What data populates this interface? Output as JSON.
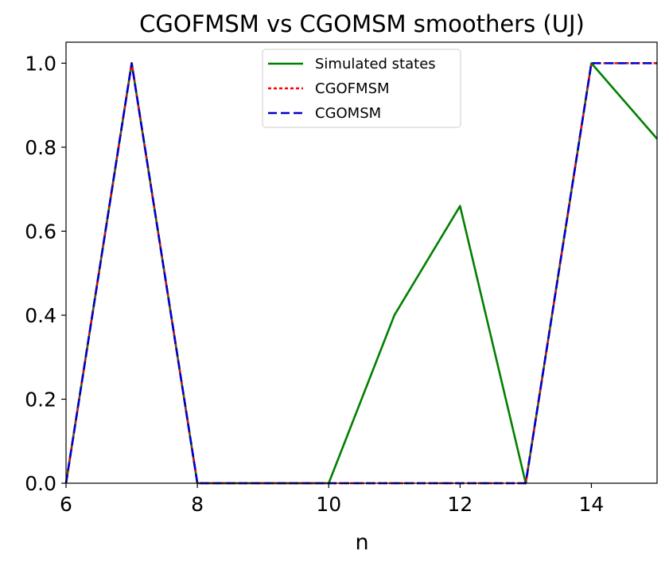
{
  "chart_data": {
    "type": "line",
    "title": "CGOFMSM vs CGOMSM smoothers (UJ)",
    "xlabel": "n",
    "ylabel": "",
    "xlim": [
      6,
      15
    ],
    "ylim": [
      0,
      1.05
    ],
    "xticks": [
      "6",
      "8",
      "10",
      "12",
      "14"
    ],
    "xtick_values": [
      6,
      8,
      10,
      12,
      14
    ],
    "yticks": [
      "0.0",
      "0.2",
      "0.4",
      "0.6",
      "0.8",
      "1.0"
    ],
    "ytick_values": [
      0,
      0.2,
      0.4,
      0.6,
      0.8,
      1.0
    ],
    "grid": false,
    "legend_position": "top-center",
    "x": [
      6,
      7,
      8,
      9,
      10,
      11,
      12,
      13,
      14,
      15
    ],
    "series": [
      {
        "name": "Simulated states",
        "color": "#008000",
        "style": "solid",
        "values": [
          0,
          1.0,
          0,
          0,
          0,
          0.4,
          0.66,
          0,
          1.0,
          0.82
        ]
      },
      {
        "name": "CGOFMSM",
        "color": "#ff0000",
        "style": "dotted",
        "values": [
          0,
          1.0,
          0,
          0,
          0,
          0,
          0,
          0,
          1.0,
          1.0
        ]
      },
      {
        "name": "CGOMSM",
        "color": "#0000cc",
        "style": "dashed",
        "values": [
          0,
          1.0,
          0,
          0,
          0,
          0,
          0,
          0,
          1.0,
          1.0
        ]
      }
    ]
  }
}
